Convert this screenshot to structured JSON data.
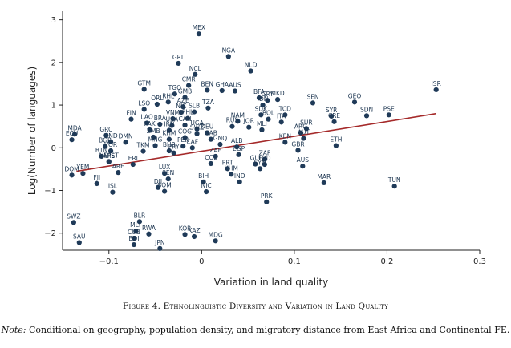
{
  "caption": {
    "title": "Figure 4. Ethnolinguistic Diversity and Variation in Land Quality",
    "note_label": "Note:",
    "note_text": "Conditional on geography, population density, and migratory distance from East Africa and Continental FE."
  },
  "colors": {
    "point": "#1f3a58",
    "fit_line": "#a52a2a",
    "axis": "#222222"
  },
  "chart_data": {
    "type": "scatter",
    "xlabel": "Variation in land quality",
    "ylabel": "Log(Number of languages)",
    "xlim": [
      -0.15,
      0.3
    ],
    "ylim": [
      -2.4,
      3.2
    ],
    "x_ticks": [
      -0.1,
      0,
      0.1,
      0.2,
      0.3
    ],
    "x_tick_labels": [
      "−0.1",
      "0",
      "0.1",
      "0.2",
      "0.3"
    ],
    "y_ticks": [
      -2,
      -1,
      0,
      1,
      2,
      3
    ],
    "y_tick_labels": [
      "−2",
      "−1",
      "0",
      "1",
      "2",
      "3"
    ],
    "grid": false,
    "fit_line": {
      "x": [
        -0.135,
        0.253
      ],
      "y": [
        -0.55,
        0.8
      ]
    },
    "points": [
      {
        "label": "MEX",
        "x": -0.003,
        "y": 2.67
      },
      {
        "label": "NGA",
        "x": 0.029,
        "y": 2.14
      },
      {
        "label": "GRL",
        "x": -0.025,
        "y": 1.98
      },
      {
        "label": "NCL",
        "x": -0.007,
        "y": 1.72
      },
      {
        "label": "NLD",
        "x": 0.053,
        "y": 1.8
      },
      {
        "label": "CMR",
        "x": -0.014,
        "y": 1.46
      },
      {
        "label": "GTM",
        "x": -0.062,
        "y": 1.37
      },
      {
        "label": "TGO",
        "x": -0.029,
        "y": 1.26
      },
      {
        "label": "BEN",
        "x": 0.006,
        "y": 1.35
      },
      {
        "label": "GHA",
        "x": 0.022,
        "y": 1.34
      },
      {
        "label": "AUS",
        "x": 0.036,
        "y": 1.33
      },
      {
        "label": "GMB",
        "x": -0.018,
        "y": 1.18
      },
      {
        "label": "RHL",
        "x": -0.036,
        "y": 1.07
      },
      {
        "label": "ORL",
        "x": -0.048,
        "y": 1.02
      },
      {
        "label": "AZE",
        "x": -0.02,
        "y": 0.96
      },
      {
        "label": "TZA",
        "x": 0.007,
        "y": 0.93
      },
      {
        "label": "LSO",
        "x": -0.062,
        "y": 0.9
      },
      {
        "label": "NIC",
        "x": -0.022,
        "y": 0.83
      },
      {
        "label": "SLB",
        "x": -0.008,
        "y": 0.84
      },
      {
        "label": "FIN",
        "x": -0.076,
        "y": 0.67
      },
      {
        "label": "VNM",
        "x": -0.031,
        "y": 0.68
      },
      {
        "label": "PHL",
        "x": -0.015,
        "y": 0.69
      },
      {
        "label": "LAO",
        "x": -0.059,
        "y": 0.58
      },
      {
        "label": "BRA",
        "x": -0.045,
        "y": 0.55
      },
      {
        "label": "USA",
        "x": -0.032,
        "y": 0.52
      },
      {
        "label": "CAN",
        "x": -0.018,
        "y": 0.53
      },
      {
        "label": "PAK",
        "x": -0.056,
        "y": 0.42
      },
      {
        "label": "IRN",
        "x": -0.035,
        "y": 0.41
      },
      {
        "label": "UGA",
        "x": -0.005,
        "y": 0.44
      },
      {
        "label": "ZMB",
        "x": -0.052,
        "y": 0.25
      },
      {
        "label": "SWZ",
        "x": -0.005,
        "y": 0.33
      },
      {
        "label": "DEU",
        "x": 0.006,
        "y": 0.35
      },
      {
        "label": "KHM",
        "x": -0.035,
        "y": 0.2
      },
      {
        "label": "GAB",
        "x": 0.01,
        "y": 0.2
      },
      {
        "label": "COG",
        "x": -0.018,
        "y": 0.24
      },
      {
        "label": "MNG",
        "x": -0.05,
        "y": 0.05
      },
      {
        "label": "PER",
        "x": -0.02,
        "y": 0.04
      },
      {
        "label": "BHR",
        "x": -0.035,
        "y": -0.07
      },
      {
        "label": "TKM",
        "x": -0.063,
        "y": -0.08
      },
      {
        "label": "PRY",
        "x": -0.03,
        "y": -0.12
      },
      {
        "label": "COL",
        "x": 0.01,
        "y": -0.37
      },
      {
        "label": "BIH",
        "x": 0.002,
        "y": -0.8
      },
      {
        "label": "NIC2",
        "x": 0.005,
        "y": -1.03
      },
      {
        "label": "MDA",
        "x": -0.137,
        "y": 0.32
      },
      {
        "label": "ECU",
        "x": -0.14,
        "y": 0.19
      },
      {
        "label": "GRC",
        "x": -0.103,
        "y": 0.29
      },
      {
        "label": "HND",
        "x": -0.098,
        "y": 0.14
      },
      {
        "label": "DMN",
        "x": -0.082,
        "y": 0.13
      },
      {
        "label": "BGR",
        "x": -0.104,
        "y": 0.03
      },
      {
        "label": "VOR",
        "x": -0.098,
        "y": -0.07
      },
      {
        "label": "BTN",
        "x": -0.108,
        "y": -0.2
      },
      {
        "label": "NEPST",
        "x": -0.1,
        "y": -0.32
      },
      {
        "label": "ARE",
        "x": -0.1,
        "y": -0.33
      },
      {
        "label": "DOM",
        "x": -0.14,
        "y": -0.64
      },
      {
        "label": "YEM",
        "x": -0.128,
        "y": -0.6
      },
      {
        "label": "ARE2",
        "x": -0.09,
        "y": -0.58
      },
      {
        "label": "ERI",
        "x": -0.074,
        "y": -0.39
      },
      {
        "label": "FJI",
        "x": -0.113,
        "y": -0.84
      },
      {
        "label": "ISL",
        "x": -0.096,
        "y": -1.04
      },
      {
        "label": "LUX",
        "x": -0.04,
        "y": -0.6
      },
      {
        "label": "SEN",
        "x": -0.036,
        "y": -0.73
      },
      {
        "label": "DJI",
        "x": -0.047,
        "y": -0.93
      },
      {
        "label": "SOM",
        "x": -0.04,
        "y": -1.02
      },
      {
        "label": "BLR",
        "x": -0.067,
        "y": -1.73
      },
      {
        "label": "MLT",
        "x": -0.071,
        "y": -1.95
      },
      {
        "label": "RWA",
        "x": -0.057,
        "y": -2.02
      },
      {
        "label": "CUB",
        "x": -0.073,
        "y": -2.12
      },
      {
        "label": "BDI",
        "x": -0.073,
        "y": -2.27
      },
      {
        "label": "KOR",
        "x": -0.018,
        "y": -2.03
      },
      {
        "label": "KAZ",
        "x": -0.008,
        "y": -2.08
      },
      {
        "label": "MDG",
        "x": 0.015,
        "y": -2.18
      },
      {
        "label": "SWZ2",
        "x": -0.138,
        "y": -1.75
      },
      {
        "label": "SAU",
        "x": -0.132,
        "y": -2.22
      },
      {
        "label": "JPN",
        "x": -0.045,
        "y": -2.36
      },
      {
        "label": "BFA",
        "x": 0.062,
        "y": 1.17
      },
      {
        "label": "GRY",
        "x": 0.071,
        "y": 1.11
      },
      {
        "label": "MKD",
        "x": 0.082,
        "y": 1.13
      },
      {
        "label": "IDN",
        "x": 0.066,
        "y": 1.0
      },
      {
        "label": "SDK",
        "x": 0.064,
        "y": 0.77
      },
      {
        "label": "BOL",
        "x": 0.072,
        "y": 0.67
      },
      {
        "label": "ITA",
        "x": 0.086,
        "y": 0.6
      },
      {
        "label": "TCD",
        "x": 0.09,
        "y": 0.77
      },
      {
        "label": "NAM",
        "x": 0.039,
        "y": 0.62
      },
      {
        "label": "RUS",
        "x": 0.033,
        "y": 0.5
      },
      {
        "label": "JOR",
        "x": 0.051,
        "y": 0.48
      },
      {
        "label": "MLI",
        "x": 0.065,
        "y": 0.42
      },
      {
        "label": "SEN2",
        "x": 0.12,
        "y": 1.05
      },
      {
        "label": "GEO",
        "x": 0.165,
        "y": 1.07
      },
      {
        "label": "SYR",
        "x": 0.14,
        "y": 0.74
      },
      {
        "label": "SDN",
        "x": 0.178,
        "y": 0.75
      },
      {
        "label": "PSE",
        "x": 0.202,
        "y": 0.77
      },
      {
        "label": "ISR",
        "x": 0.253,
        "y": 1.36
      },
      {
        "label": "CRE",
        "x": 0.143,
        "y": 0.61
      },
      {
        "label": "SUR",
        "x": 0.113,
        "y": 0.45
      },
      {
        "label": "ARG",
        "x": 0.107,
        "y": 0.35
      },
      {
        "label": "AUT",
        "x": 0.11,
        "y": 0.22
      },
      {
        "label": "KEN",
        "x": 0.09,
        "y": 0.13
      },
      {
        "label": "ETH",
        "x": 0.145,
        "y": 0.05
      },
      {
        "label": "GBR",
        "x": 0.104,
        "y": -0.06
      },
      {
        "label": "ALB",
        "x": 0.038,
        "y": 0.02
      },
      {
        "label": "EGP",
        "x": 0.04,
        "y": -0.16
      },
      {
        "label": "ZAF",
        "x": 0.068,
        "y": -0.27
      },
      {
        "label": "GUI",
        "x": 0.058,
        "y": -0.38
      },
      {
        "label": "FRD",
        "x": 0.068,
        "y": -0.39
      },
      {
        "label": "SYN",
        "x": 0.063,
        "y": -0.49
      },
      {
        "label": "AUS2",
        "x": 0.109,
        "y": -0.43
      },
      {
        "label": "PRT",
        "x": 0.028,
        "y": -0.49
      },
      {
        "label": "KHM2",
        "x": 0.032,
        "y": -0.62
      },
      {
        "label": "IND",
        "x": 0.041,
        "y": -0.8
      },
      {
        "label": "PRK",
        "x": 0.07,
        "y": -1.27
      },
      {
        "label": "MAR",
        "x": 0.132,
        "y": -0.82
      },
      {
        "label": "TUN",
        "x": 0.208,
        "y": -0.9
      },
      {
        "label": "ZAF2",
        "x": 0.015,
        "y": -0.2
      },
      {
        "label": "CAF",
        "x": -0.01,
        "y": 0.0
      },
      {
        "label": "GNQ",
        "x": 0.02,
        "y": 0.08
      }
    ],
    "visible_labels": {
      "MEX": "MEX",
      "NGA": "NGA",
      "GRL": "GRL",
      "NCL": "NCL",
      "NLD": "NLD",
      "CMR": "CMR",
      "GTM": "GTM",
      "TGO": "TGO",
      "BEN": "BEN",
      "GHA": "GHA",
      "AUS": "AUS",
      "GMB": "GMB",
      "RHL": "RHL",
      "ORL": "ORL",
      "AZE": "AZE",
      "TZA": "TZA",
      "LSO": "LSO",
      "NIC": "NIC",
      "SLB": "SLB",
      "FIN": "FIN",
      "VNM": "VNM",
      "LAO": "LAO",
      "PAK": "PAK",
      "ZMB": "ZMB",
      "DEU": "DEU",
      "MNG": "MNG",
      "TKM": "TKM",
      "BIH": "BIH",
      "NIC2": "NIC",
      "MDA": "MDA",
      "ECU": "ECU",
      "GRC": "GRC",
      "HND": "HND",
      "DMN": "DMN",
      "BGR": "BGR",
      "VOR": "VOR",
      "BTN": "BTN",
      "NEPST": "NEPST",
      "DOM": "DOM",
      "YEM": "YEM",
      "ARE2": "ARE",
      "ERI": "ERI",
      "FJI": "FJI",
      "ISL": "ISL",
      "LUX": "LUX",
      "SEN": "SEN",
      "DJI": "DJI",
      "SOM": "SOM",
      "BLR": "BLR",
      "MLT": "MLT",
      "RWA": "RWA",
      "CUB": "CUB",
      "BDI": "BDI",
      "KOR": "KOR",
      "KAZ": "KAZ",
      "MDG": "MDG",
      "SWZ2": "SWZ",
      "SAU": "SAU",
      "JPN": "JPN",
      "BFA": "BFA",
      "GRY": "GRY",
      "MKD": "MKD",
      "IDN": "IDN",
      "SDK": "SDK",
      "BOL": "BOL",
      "ITA": "ITA",
      "TCD": "TCD",
      "NAM": "NAM",
      "RUS": "RUS",
      "JOR": "JOR",
      "MLI": "MLI",
      "SEN2": "SEN",
      "GEO": "GEO",
      "SYR": "SYR",
      "SDN": "SDN",
      "PSE": "PSE",
      "ISR": "ISR",
      "CRE": "CRE",
      "SUR": "SUR",
      "ARG": "ARG",
      "AUT": "AUT",
      "KEN": "KEN",
      "ETH": "ETH",
      "GBR": "GBR",
      "ALB": "ALB",
      "EGP": "EGP",
      "ZAF": "ZAF",
      "GUI": "GUI",
      "FRD": "FRD",
      "SYN": "SYN",
      "AUS2": "AUS",
      "PRT": "PRT",
      "KHM2": "KHM",
      "IND": "IND",
      "PRK": "PRK",
      "MAR": "MAR",
      "TUN": "TUN",
      "ZAF2": "ZAF",
      "CAF": "CAF",
      "GNQ": "GNQ",
      "SWZ": "SWZ",
      "USA": "USA",
      "CAN": "CAN",
      "PHL": "PHL",
      "BRA": "BRA",
      "IRN": "IRN",
      "UGA": "UGA",
      "KHM": "KHM",
      "GAB": "GAB",
      "COG": "COG",
      "PER": "PER",
      "BHR": "BHR",
      "PRY": "PRY",
      "COL": "COL",
      "ARE": "ARE"
    }
  }
}
